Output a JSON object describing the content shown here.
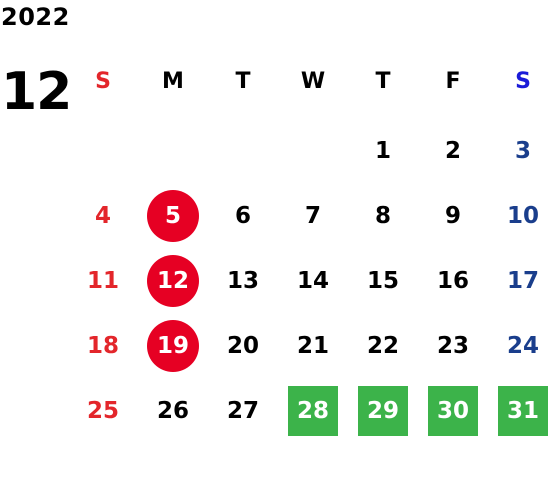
{
  "calendar": {
    "year": "2022",
    "month": "12",
    "weekdays": [
      "S",
      "M",
      "T",
      "W",
      "T",
      "F",
      "S"
    ],
    "weeks": [
      [
        "",
        "",
        "",
        "",
        "1",
        "2",
        "3"
      ],
      [
        "4",
        "5",
        "6",
        "7",
        "8",
        "9",
        "10"
      ],
      [
        "11",
        "12",
        "13",
        "14",
        "15",
        "16",
        "17"
      ],
      [
        "18",
        "19",
        "20",
        "21",
        "22",
        "23",
        "24"
      ],
      [
        "25",
        "26",
        "27",
        "28",
        "29",
        "30",
        "31"
      ]
    ],
    "highlight_circle": [
      "5",
      "12",
      "19"
    ],
    "highlight_square": [
      "28",
      "29",
      "30",
      "31"
    ],
    "colors": {
      "text": "#000000",
      "sunday": "#e3262b",
      "saturday": "#1a3e8c",
      "saturday_header": "#1b1bd8",
      "circle_bg": "#e60023",
      "square_bg": "#3cb34a"
    }
  }
}
